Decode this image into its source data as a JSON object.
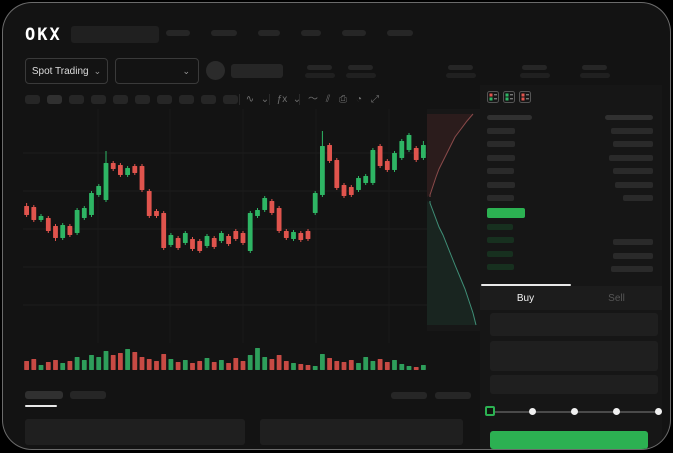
{
  "header": {
    "logo_text": "OKX",
    "nav_items": [
      {
        "w": 24
      },
      {
        "w": 26
      },
      {
        "w": 22
      },
      {
        "w": 20
      },
      {
        "w": 24
      },
      {
        "w": 26
      }
    ]
  },
  "trading_bar": {
    "market_selector_label": "Spot Trading",
    "caret": "⌄",
    "stat_blocks": [
      {
        "x": 302
      },
      {
        "x": 343
      },
      {
        "x": 443
      },
      {
        "x": 517
      },
      {
        "x": 577
      }
    ]
  },
  "chart_toolbar": {
    "timeframes": [
      {
        "w": 15
      },
      {
        "w": 15
      },
      {
        "w": 15
      },
      {
        "w": 15
      },
      {
        "w": 15
      },
      {
        "w": 15
      },
      {
        "w": 15
      },
      {
        "w": 15
      },
      {
        "w": 15
      },
      {
        "w": 15
      }
    ],
    "selected_index": 1,
    "icons": [
      {
        "name": "candle-style-icon",
        "glyph": "∿"
      },
      {
        "name": "chevron-down-icon",
        "glyph": "⌄"
      },
      {
        "name": "indicator-fx-icon",
        "glyph": "ƒx"
      },
      {
        "name": "chevron-down-icon",
        "glyph": "⌄"
      },
      {
        "name": "line-tool-icon",
        "glyph": "〜"
      },
      {
        "name": "compare-icon",
        "glyph": "⫽"
      },
      {
        "name": "camera-icon",
        "glyph": "⎙"
      },
      {
        "name": "history-clock-icon",
        "glyph": "◔"
      },
      {
        "name": "fullscreen-icon",
        "glyph": "⤢"
      }
    ]
  },
  "order_book": {
    "mode_icons": [
      {
        "name": "book-combined-icon",
        "top": "#e0544d",
        "bottom": "#2eb564"
      },
      {
        "name": "book-bids-icon",
        "top": "#2eb564",
        "bottom": "#2eb564"
      },
      {
        "name": "book-asks-icon",
        "top": "#e0544d",
        "bottom": "#e0544d"
      }
    ],
    "header": {
      "left_w": 45,
      "right_w": 48
    },
    "asks": [
      {
        "pw": 28,
        "sw": 42
      },
      {
        "pw": 28,
        "sw": 40
      },
      {
        "pw": 28,
        "sw": 44
      },
      {
        "pw": 27,
        "sw": 40
      },
      {
        "pw": 28,
        "sw": 38
      },
      {
        "pw": 27,
        "sw": 30
      }
    ],
    "last_price_bar": {
      "w": 38,
      "h": 10,
      "color": "#2cb152"
    },
    "bids": [
      {
        "pw": 26,
        "sw": 0
      },
      {
        "pw": 27,
        "sw": 40
      },
      {
        "pw": 26,
        "sw": 40
      },
      {
        "pw": 27,
        "sw": 42
      }
    ]
  },
  "trade_panel": {
    "tabs": [
      {
        "label": "Buy",
        "active": true
      },
      {
        "label": "Sell",
        "active": false
      }
    ],
    "slider": {
      "stops": 5,
      "active_stop": 0
    },
    "submit_color": "#2ba24c"
  },
  "colors": {
    "candle_up": "#2eb564",
    "candle_down": "#e0544d",
    "volume_up": "#2e9e5b",
    "volume_down": "#c74a44",
    "accent_green": "#2cb152",
    "grid": "#1e1e1e",
    "depth_ask_line": "#8a4a4a",
    "depth_bid_line": "#3f8f77",
    "depth_ask_fill": "rgba(150,55,55,0.16)",
    "depth_bid_fill": "rgba(45,130,90,0.14)"
  },
  "chart_data": {
    "type": "candlestick",
    "title": "",
    "xlabel": "",
    "ylabel": "",
    "price_unit": "relative",
    "ylim": [
      90,
      230
    ],
    "grid": true,
    "candles_ohlc": [
      [
        147,
        150,
        136,
        138
      ],
      [
        146,
        148,
        131,
        133
      ],
      [
        133,
        139,
        131,
        137
      ],
      [
        135,
        137,
        120,
        122
      ],
      [
        127,
        129,
        112,
        115
      ],
      [
        115,
        130,
        113,
        128
      ],
      [
        127,
        129,
        116,
        118
      ],
      [
        120,
        145,
        118,
        143
      ],
      [
        135,
        147,
        133,
        145
      ],
      [
        138,
        162,
        136,
        160
      ],
      [
        158,
        169,
        156,
        167
      ],
      [
        153,
        202,
        151,
        190
      ],
      [
        190,
        192,
        182,
        184
      ],
      [
        188,
        190,
        176,
        178
      ],
      [
        178,
        187,
        176,
        185
      ],
      [
        187,
        189,
        178,
        180
      ],
      [
        187,
        189,
        161,
        163
      ],
      [
        162,
        164,
        135,
        137
      ],
      [
        142,
        144,
        135,
        137
      ],
      [
        140,
        142,
        103,
        105
      ],
      [
        108,
        120,
        106,
        118
      ],
      [
        115,
        117,
        103,
        105
      ],
      [
        110,
        122,
        108,
        120
      ],
      [
        114,
        116,
        102,
        104
      ],
      [
        112,
        114,
        100,
        102
      ],
      [
        107,
        119,
        105,
        117
      ],
      [
        115,
        117,
        104,
        106
      ],
      [
        112,
        122,
        110,
        120
      ],
      [
        117,
        119,
        107,
        109
      ],
      [
        122,
        124,
        112,
        114
      ],
      [
        120,
        122,
        108,
        110
      ],
      [
        102,
        142,
        100,
        140
      ],
      [
        137,
        145,
        135,
        143
      ],
      [
        143,
        157,
        141,
        155
      ],
      [
        152,
        154,
        138,
        140
      ],
      [
        145,
        147,
        120,
        122
      ],
      [
        122,
        124,
        113,
        115
      ],
      [
        114,
        123,
        112,
        121
      ],
      [
        120,
        122,
        111,
        113
      ],
      [
        122,
        124,
        112,
        114
      ],
      [
        140,
        162,
        138,
        160
      ],
      [
        158,
        222,
        156,
        207
      ],
      [
        208,
        210,
        190,
        192
      ],
      [
        193,
        195,
        163,
        165
      ],
      [
        168,
        170,
        155,
        157
      ],
      [
        166,
        168,
        156,
        158
      ],
      [
        163,
        177,
        161,
        175
      ],
      [
        170,
        179,
        168,
        177
      ],
      [
        170,
        205,
        168,
        203
      ],
      [
        207,
        209,
        185,
        187
      ],
      [
        192,
        194,
        181,
        183
      ],
      [
        183,
        202,
        181,
        200
      ],
      [
        195,
        214,
        193,
        212
      ],
      [
        203,
        220,
        201,
        218
      ],
      [
        205,
        207,
        191,
        193
      ],
      [
        195,
        212,
        193,
        208
      ]
    ],
    "volume": [
      9,
      11,
      5,
      8,
      10,
      7,
      9,
      13,
      10,
      15,
      13,
      19,
      15,
      17,
      21,
      18,
      13,
      11,
      9,
      16,
      11,
      8,
      10,
      7,
      9,
      12,
      8,
      10,
      7,
      12,
      9,
      15,
      22,
      13,
      11,
      15,
      9,
      7,
      6,
      5,
      4,
      16,
      12,
      9,
      8,
      10,
      7,
      13,
      9,
      11,
      8,
      10,
      6,
      4,
      3,
      5
    ],
    "depth": {
      "asks": [
        [
          2,
          3
        ],
        [
          8,
          5
        ],
        [
          14,
          7
        ],
        [
          20,
          9
        ],
        [
          28,
          12
        ],
        [
          36,
          16
        ],
        [
          44,
          20
        ],
        [
          52,
          24
        ],
        [
          60,
          28
        ],
        [
          68,
          34
        ],
        [
          76,
          40
        ],
        [
          83,
          46
        ]
      ],
      "bids": [
        [
          2,
          3
        ],
        [
          10,
          6
        ],
        [
          18,
          9
        ],
        [
          26,
          12
        ],
        [
          34,
          16
        ],
        [
          44,
          20
        ],
        [
          54,
          24
        ],
        [
          64,
          28
        ],
        [
          76,
          33
        ],
        [
          88,
          38
        ],
        [
          100,
          42
        ],
        [
          112,
          46
        ],
        [
          124,
          49
        ]
      ]
    }
  }
}
